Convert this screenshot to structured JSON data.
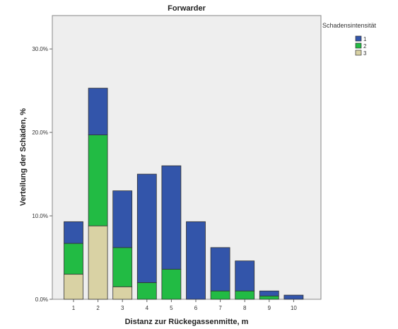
{
  "chart_data": {
    "type": "bar",
    "stacked": true,
    "title": "Forwarder",
    "xlabel": "Distanz zur Rückegassenmitte, m",
    "ylabel": "Verteilung der Schäden, %",
    "categories": [
      "1",
      "2",
      "3",
      "4",
      "5",
      "6",
      "7",
      "8",
      "9",
      "10"
    ],
    "series": [
      {
        "name": "3",
        "color": "#d9d2a4",
        "values": [
          3.0,
          8.8,
          1.5,
          0,
          0,
          0,
          0,
          0,
          0,
          0
        ]
      },
      {
        "name": "2",
        "color": "#22bb44",
        "values": [
          3.7,
          10.9,
          4.7,
          2.0,
          3.6,
          0,
          1.0,
          1.0,
          0.4,
          0
        ]
      },
      {
        "name": "1",
        "color": "#3355aa",
        "values": [
          2.6,
          5.6,
          6.8,
          13.0,
          12.4,
          9.3,
          5.2,
          3.6,
          0.6,
          0.5
        ]
      }
    ],
    "ylim": [
      0,
      34
    ],
    "yticks": [
      0,
      10,
      20,
      30
    ],
    "ytick_labels": [
      "0.0%",
      "10.0%",
      "20.0%",
      "30.0%"
    ],
    "legend": {
      "title": "Schadensintensität",
      "placement": "top-right",
      "entries": [
        {
          "label": "1",
          "color": "#3355aa"
        },
        {
          "label": "2",
          "color": "#22bb44"
        },
        {
          "label": "3",
          "color": "#d9d2a4"
        }
      ]
    },
    "plot_background": "#eeeeee",
    "grid": false
  }
}
